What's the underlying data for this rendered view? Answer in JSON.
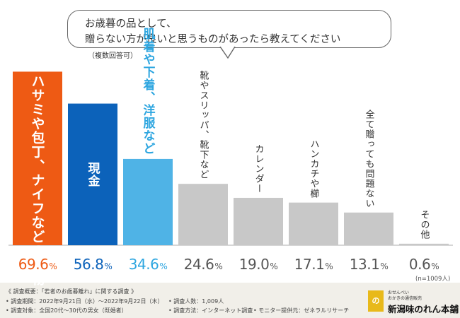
{
  "question": {
    "line1": "お歳暮の品として、",
    "line2": "贈らない方が良いと思うものがあったら教えてください",
    "note": "（複数回答可）"
  },
  "chart_data": {
    "type": "bar",
    "title": "お歳暮の品として、贈らない方が良いと思うものがあったら教えてください（複数回答可）",
    "categories": [
      "ハサミや包丁、ナイフなどの刃物",
      "現金",
      "肌着や下着、洋服など",
      "靴やスリッパ、靴下など",
      "カレンダー",
      "ハンカチや櫛",
      "全て贈っても問題ない",
      "その他"
    ],
    "values": [
      69.6,
      56.8,
      34.6,
      24.6,
      19.0,
      17.1,
      13.1,
      0.6
    ],
    "value_labels": [
      {
        "num": "69.6",
        "unit": "%"
      },
      {
        "num": "56.8",
        "unit": "%"
      },
      {
        "num": "34.6",
        "unit": "%"
      },
      {
        "num": "24.6",
        "unit": "%"
      },
      {
        "num": "19.0",
        "unit": "%"
      },
      {
        "num": "17.1",
        "unit": "%"
      },
      {
        "num": "13.1",
        "unit": "%"
      },
      {
        "num": "0.6",
        "unit": "%"
      }
    ],
    "colors": [
      "#ee5a14",
      "#0c62ba",
      "#4fb3e6",
      "#c8c8c8",
      "#c8c8c8",
      "#c8c8c8",
      "#c8c8c8",
      "#c8c8c8"
    ],
    "label_colors": [
      "#ffffff",
      "#ffffff",
      "#2ea6e0",
      "#333333",
      "#333333",
      "#333333",
      "#333333",
      "#333333"
    ],
    "pct_colors": [
      "#ee5a14",
      "#0c62ba",
      "#2ea6e0",
      "#555555",
      "#555555",
      "#555555",
      "#555555",
      "#555555"
    ],
    "ylim": [
      0,
      70
    ],
    "sample_note": "(n=1009人)"
  },
  "footer": {
    "summary": "《 調査概要：「若者のお歳暮離れ」に関する調査 》",
    "period": "• 調査期間：2022年9月21日（水）〜2022年9月22日（木）",
    "count": "• 調査人数：1,009人",
    "target": "• 調査対象：全国20代〜30代の男女（既婚者）",
    "method": "• 調査方法：インターネット調査",
    "provider": "• モニター提供元：ゼネラルリサーチ"
  },
  "logo": {
    "mark": "の",
    "tagline1": "おせんべい",
    "tagline2": "おかきの通信販売",
    "name": "新潟味のれん本舗"
  }
}
